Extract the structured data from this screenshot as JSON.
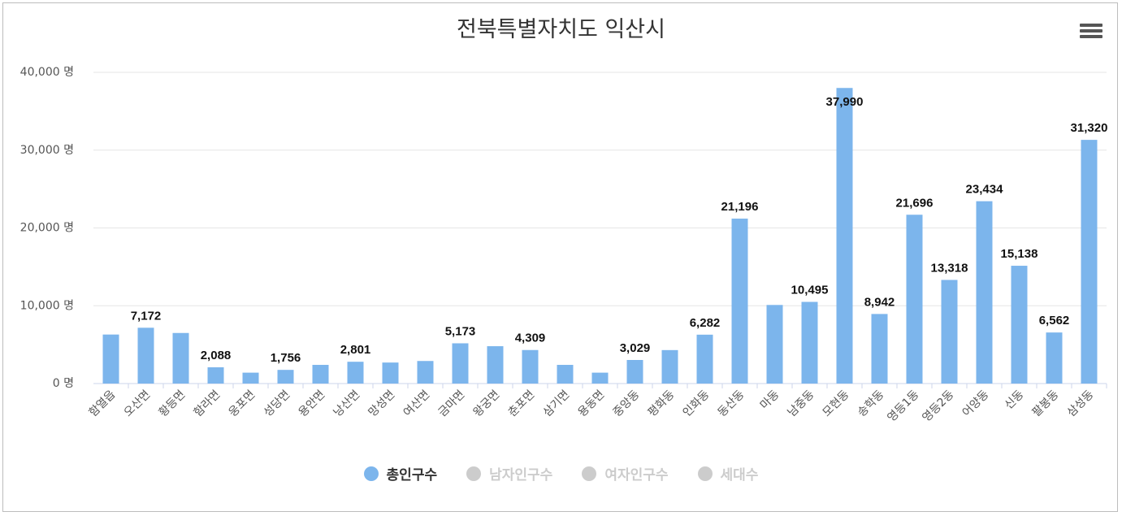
{
  "chart_data": {
    "type": "bar",
    "title": "전북특별자치도 익산시",
    "ylim": [
      0,
      40000
    ],
    "yticks": [
      {
        "value": 0,
        "label": "0 명"
      },
      {
        "value": 10000,
        "label": "10,000 명"
      },
      {
        "value": 20000,
        "label": "20,000 명"
      },
      {
        "value": 30000,
        "label": "30,000 명"
      },
      {
        "value": 40000,
        "label": "40,000 명"
      }
    ],
    "grid": true,
    "legend_position": "bottom-center",
    "series": [
      {
        "name": "총인구수",
        "color": "#7cb5ec",
        "active": true
      },
      {
        "name": "남자인구수",
        "color": "#cccccc",
        "active": false
      },
      {
        "name": "여자인구수",
        "color": "#cccccc",
        "active": false
      },
      {
        "name": "세대수",
        "color": "#cccccc",
        "active": false
      }
    ],
    "categories": [
      "함열읍",
      "오산면",
      "황등면",
      "함라면",
      "웅포면",
      "성당면",
      "용안면",
      "낭산면",
      "망성면",
      "여산면",
      "금마면",
      "왕궁면",
      "춘포면",
      "삼기면",
      "용동면",
      "중앙동",
      "평화동",
      "인화동",
      "동산동",
      "마동",
      "남중동",
      "모현동",
      "송학동",
      "영등1동",
      "영등2동",
      "어양동",
      "신동",
      "팔봉동",
      "삼성동"
    ],
    "values": [
      6300,
      7172,
      6500,
      2088,
      1400,
      1756,
      2400,
      2801,
      2700,
      2900,
      5173,
      4800,
      4309,
      2400,
      1400,
      3029,
      4300,
      6282,
      21196,
      10100,
      10495,
      37990,
      8942,
      21696,
      13318,
      23434,
      15138,
      6562,
      31320
    ],
    "data_labels": [
      "",
      "7,172",
      "",
      "2,088",
      "",
      "1,756",
      "",
      "2,801",
      "",
      "",
      "5,173",
      "",
      "4,309",
      "",
      "",
      "3,029",
      "",
      "6,282",
      "21,196",
      "",
      "10,495",
      "37,990",
      "8,942",
      "21,696",
      "13,318",
      "23,434",
      "15,138",
      "6,562",
      "31,320"
    ]
  }
}
